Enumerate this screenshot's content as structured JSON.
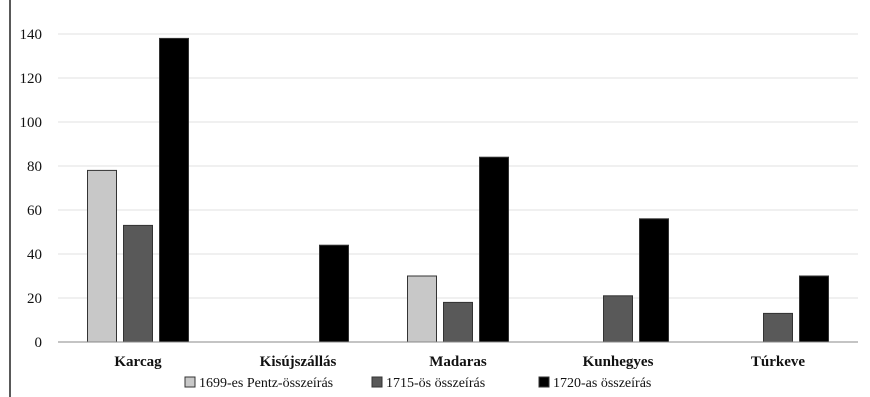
{
  "chart_data": {
    "type": "bar",
    "title": "",
    "xlabel": "",
    "ylabel": "",
    "categories": [
      "Karcag",
      "Kisújszállás",
      "Madaras",
      "Kunhegyes",
      "Túrkeve"
    ],
    "series": [
      {
        "name": "1699-es Pentz-összeírás",
        "values": [
          78,
          null,
          30,
          null,
          null
        ],
        "color": "#c8c8c8"
      },
      {
        "name": "1715-ös összeírás",
        "values": [
          53,
          null,
          18,
          21,
          13
        ],
        "color": "#595959"
      },
      {
        "name": "1720-as összeírás",
        "values": [
          138,
          44,
          84,
          56,
          30
        ],
        "color": "#000000"
      }
    ],
    "ylim": [
      0,
      140
    ],
    "yticks": [
      0,
      20,
      40,
      60,
      80,
      100,
      120,
      140
    ],
    "grid": true,
    "legend": "bottom"
  }
}
